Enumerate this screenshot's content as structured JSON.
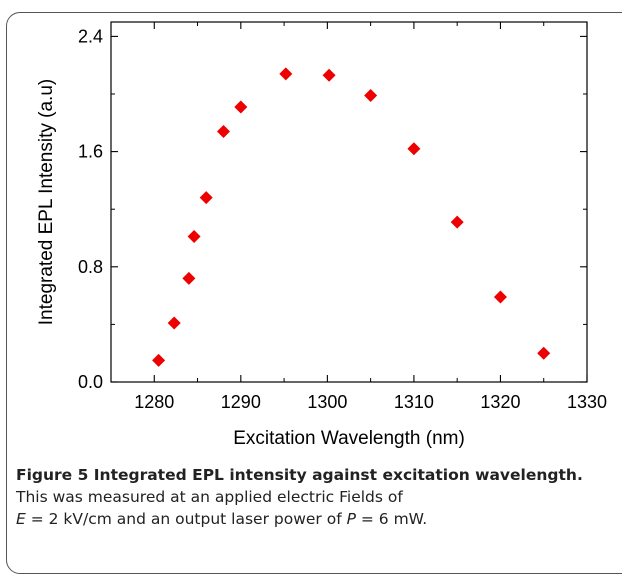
{
  "chart_data": {
    "type": "scatter",
    "title": "",
    "xlabel": "Excitation Wavelength (nm)",
    "ylabel": "Integrated EPL Intensity (a.u)",
    "xlim": [
      1275,
      1330
    ],
    "ylim": [
      0.0,
      2.5
    ],
    "xticks": [
      1280,
      1290,
      1300,
      1310,
      1320,
      1330
    ],
    "yticks": [
      0.0,
      0.8,
      1.6,
      2.4
    ],
    "xtick_labels": [
      "1280",
      "1290",
      "1300",
      "1310",
      "1320",
      "1330"
    ],
    "ytick_labels": [
      "0.0",
      "0.8",
      "1.6",
      "2.4"
    ],
    "marker": "diamond",
    "marker_color": "#ee0000",
    "grid": false,
    "x": [
      1280.5,
      1282.3,
      1284.0,
      1284.6,
      1286.0,
      1288.0,
      1290.0,
      1295.2,
      1300.2,
      1305.0,
      1310.0,
      1315.0,
      1320.0,
      1325.0
    ],
    "y": [
      0.15,
      0.41,
      0.72,
      1.01,
      1.28,
      1.74,
      1.91,
      2.14,
      2.13,
      1.99,
      1.62,
      1.11,
      0.59,
      0.2
    ]
  },
  "caption": {
    "label": "Figure 5 Integrated EPL intensity against excitation wavelength.",
    "line2": "This was measured at an applied electric Fields of",
    "eq1_var": "E",
    "eq1_rest": " = 2 kV/cm and an output laser power of ",
    "eq2_var": "P",
    "eq2_rest": " = 6 mW."
  }
}
